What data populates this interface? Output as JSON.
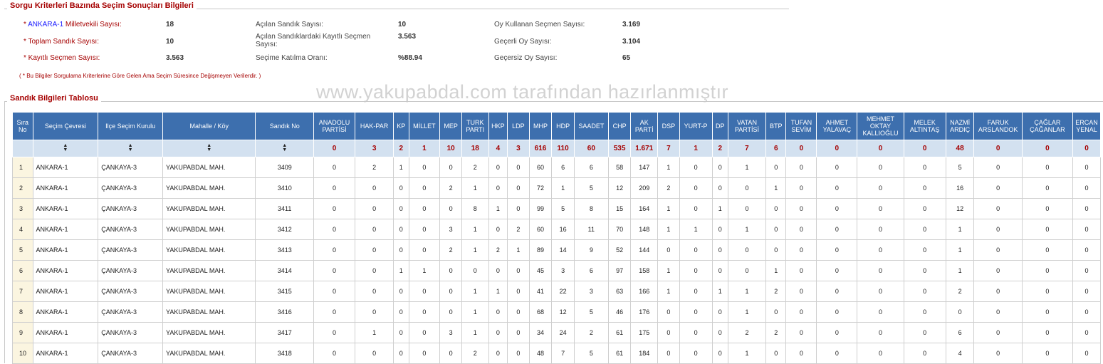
{
  "criteria": {
    "legend": "Sorgu Kriterleri Bazında Seçim Sonuçları Bilgileri",
    "col1": [
      {
        "prefix": "* ",
        "blue": "ANKARA-1",
        "label": " Milletvekili Sayısı:",
        "value": "18"
      },
      {
        "prefix": "",
        "blue": "",
        "label": "* Toplam Sandık Sayısı:",
        "value": "10"
      },
      {
        "prefix": "",
        "blue": "",
        "label": "* Kayıtlı Seçmen Sayısı:",
        "value": "3.563"
      }
    ],
    "col2": [
      {
        "label": "Açılan Sandık Sayısı:",
        "value": "10"
      },
      {
        "label": "Açılan Sandıklardaki Kayıtlı Seçmen Sayısı:",
        "value": "3.563"
      },
      {
        "label": "Seçime Katılma Oranı:",
        "value": "%88.94"
      }
    ],
    "col3": [
      {
        "label": "Oy Kullanan Seçmen Sayısı:",
        "value": "3.169"
      },
      {
        "label": "Geçerli Oy Sayısı:",
        "value": "3.104"
      },
      {
        "label": "Geçersiz Oy Sayısı:",
        "value": "65"
      }
    ],
    "note": "( * Bu Bilgiler Sorgulama Kriterlerine Göre Gelen Ama Seçim Süresince Değişmeyen Verilerdir. )"
  },
  "watermark": "www.yakupabdal.com tarafından hazırlanmıştır",
  "table": {
    "legend": "Sandık Bilgileri Tablosu",
    "headers": [
      "Sıra No",
      "Seçim Çevresi",
      "Ilçe Seçim Kurulu",
      "Mahalle / Köy",
      "Sandık No",
      "ANADOLU PARTİSİ",
      "HAK-PAR",
      "KP",
      "MİLLET",
      "MEP",
      "TURK PARTI",
      "HKP",
      "LDP",
      "MHP",
      "HDP",
      "SAADET",
      "CHP",
      "AK PARTİ",
      "DSP",
      "YURT-P",
      "DP",
      "VATAN PARTİSİ",
      "BTP",
      "TUFAN SEVİM",
      "AHMET YALAVAÇ",
      "MEHMET OKTAY KALLIOĞLU",
      "MELEK ALTINTAŞ",
      "NAZMİ ARDIÇ",
      "FARUK ARSLANDOK",
      "ÇAĞLAR ÇAĞANLAR",
      "ERCAN YENAL"
    ],
    "sort_icon": "▲▼",
    "totals": [
      "0",
      "3",
      "2",
      "1",
      "10",
      "18",
      "4",
      "3",
      "616",
      "110",
      "60",
      "535",
      "1.671",
      "7",
      "1",
      "2",
      "7",
      "6",
      "0",
      "0",
      "0",
      "0",
      "48",
      "0",
      "0",
      "0"
    ],
    "rows": [
      [
        "1",
        "ANKARA-1",
        "ÇANKAYA-3",
        "YAKUPABDAL MAH.",
        "3409",
        "0",
        "2",
        "1",
        "0",
        "0",
        "2",
        "0",
        "0",
        "60",
        "6",
        "6",
        "58",
        "147",
        "1",
        "0",
        "0",
        "1",
        "0",
        "0",
        "0",
        "0",
        "0",
        "5",
        "0",
        "0",
        "0"
      ],
      [
        "2",
        "ANKARA-1",
        "ÇANKAYA-3",
        "YAKUPABDAL MAH.",
        "3410",
        "0",
        "0",
        "0",
        "0",
        "2",
        "1",
        "0",
        "0",
        "72",
        "1",
        "5",
        "12",
        "209",
        "2",
        "0",
        "0",
        "0",
        "1",
        "0",
        "0",
        "0",
        "0",
        "16",
        "0",
        "0",
        "0"
      ],
      [
        "3",
        "ANKARA-1",
        "ÇANKAYA-3",
        "YAKUPABDAL MAH.",
        "3411",
        "0",
        "0",
        "0",
        "0",
        "0",
        "8",
        "1",
        "0",
        "99",
        "5",
        "8",
        "15",
        "164",
        "1",
        "0",
        "1",
        "0",
        "0",
        "0",
        "0",
        "0",
        "0",
        "12",
        "0",
        "0",
        "0"
      ],
      [
        "4",
        "ANKARA-1",
        "ÇANKAYA-3",
        "YAKUPABDAL MAH.",
        "3412",
        "0",
        "0",
        "0",
        "0",
        "3",
        "1",
        "0",
        "2",
        "60",
        "16",
        "11",
        "70",
        "148",
        "1",
        "1",
        "0",
        "1",
        "0",
        "0",
        "0",
        "0",
        "0",
        "1",
        "0",
        "0",
        "0"
      ],
      [
        "5",
        "ANKARA-1",
        "ÇANKAYA-3",
        "YAKUPABDAL MAH.",
        "3413",
        "0",
        "0",
        "0",
        "0",
        "2",
        "1",
        "2",
        "1",
        "89",
        "14",
        "9",
        "52",
        "144",
        "0",
        "0",
        "0",
        "0",
        "0",
        "0",
        "0",
        "0",
        "0",
        "1",
        "0",
        "0",
        "0"
      ],
      [
        "6",
        "ANKARA-1",
        "ÇANKAYA-3",
        "YAKUPABDAL MAH.",
        "3414",
        "0",
        "0",
        "1",
        "1",
        "0",
        "0",
        "0",
        "0",
        "45",
        "3",
        "6",
        "97",
        "158",
        "1",
        "0",
        "0",
        "0",
        "1",
        "0",
        "0",
        "0",
        "0",
        "1",
        "0",
        "0",
        "0"
      ],
      [
        "7",
        "ANKARA-1",
        "ÇANKAYA-3",
        "YAKUPABDAL MAH.",
        "3415",
        "0",
        "0",
        "0",
        "0",
        "0",
        "1",
        "1",
        "0",
        "41",
        "22",
        "3",
        "63",
        "166",
        "1",
        "0",
        "1",
        "1",
        "2",
        "0",
        "0",
        "0",
        "0",
        "2",
        "0",
        "0",
        "0"
      ],
      [
        "8",
        "ANKARA-1",
        "ÇANKAYA-3",
        "YAKUPABDAL MAH.",
        "3416",
        "0",
        "0",
        "0",
        "0",
        "0",
        "1",
        "0",
        "0",
        "68",
        "12",
        "5",
        "46",
        "176",
        "0",
        "0",
        "0",
        "1",
        "0",
        "0",
        "0",
        "0",
        "0",
        "0",
        "0",
        "0",
        "0"
      ],
      [
        "9",
        "ANKARA-1",
        "ÇANKAYA-3",
        "YAKUPABDAL MAH.",
        "3417",
        "0",
        "1",
        "0",
        "0",
        "3",
        "1",
        "0",
        "0",
        "34",
        "24",
        "2",
        "61",
        "175",
        "0",
        "0",
        "0",
        "2",
        "2",
        "0",
        "0",
        "0",
        "0",
        "6",
        "0",
        "0",
        "0"
      ],
      [
        "10",
        "ANKARA-1",
        "ÇANKAYA-3",
        "YAKUPABDAL MAH.",
        "3418",
        "0",
        "0",
        "0",
        "0",
        "0",
        "2",
        "0",
        "0",
        "48",
        "7",
        "5",
        "61",
        "184",
        "0",
        "0",
        "0",
        "1",
        "0",
        "0",
        "0",
        "0",
        "0",
        "4",
        "0",
        "0",
        "0"
      ]
    ]
  }
}
